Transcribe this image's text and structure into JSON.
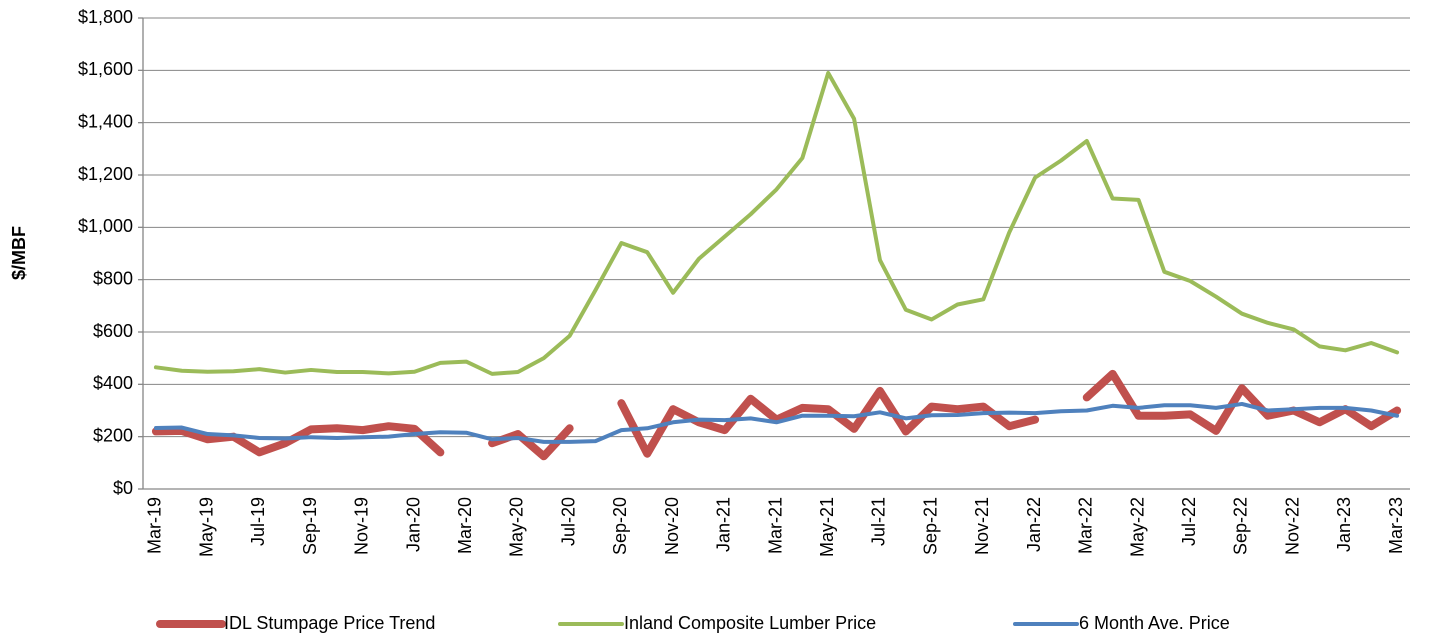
{
  "chart_data": {
    "type": "line",
    "y_label": "$/MBF",
    "categories": [
      "Mar-19",
      null,
      "May-19",
      null,
      "Jul-19",
      null,
      "Sep-19",
      null,
      "Nov-19",
      null,
      "Jan-20",
      null,
      "Mar-20",
      null,
      "May-20",
      null,
      "Jul-20",
      null,
      "Sep-20",
      null,
      "Nov-20",
      null,
      "Jan-21",
      null,
      "Mar-21",
      null,
      "May-21",
      null,
      "Jul-21",
      null,
      "Sep-21",
      null,
      "Nov-21",
      null,
      "Jan-22",
      null,
      "Mar-22",
      null,
      "May-22",
      null,
      "Jul-22",
      null,
      "Sep-22",
      null,
      "Nov-22",
      null,
      "Jan-23",
      null,
      "Mar-23"
    ],
    "series": [
      {
        "name": "IDL Stumpage Price Trend",
        "color": "#c0504d",
        "values": [
          220,
          222,
          190,
          200,
          140,
          175,
          228,
          232,
          225,
          240,
          230,
          140,
          null,
          175,
          210,
          125,
          232,
          null,
          328,
          135,
          305,
          255,
          225,
          345,
          265,
          310,
          305,
          230,
          375,
          220,
          315,
          305,
          315,
          240,
          265,
          null,
          350,
          440,
          280,
          280,
          285,
          222,
          385,
          280,
          300,
          255,
          305,
          240,
          300
        ]
      },
      {
        "name": "Inland Composite Lumber Price",
        "color": "#9bbb59",
        "values": [
          465,
          452,
          448,
          450,
          458,
          445,
          455,
          447,
          447,
          442,
          448,
          482,
          487,
          440,
          447,
          500,
          585,
          760,
          940,
          905,
          750,
          880,
          965,
          1050,
          1145,
          1265,
          1590,
          1415,
          875,
          685,
          648,
          705,
          725,
          980,
          1190,
          1255,
          1330,
          1110,
          1105,
          830,
          795,
          735,
          670,
          635,
          610,
          545,
          530,
          558,
          522
        ]
      },
      {
        "name": "6 Month Ave. Price",
        "color": "#4f81bd",
        "values": [
          233,
          235,
          210,
          205,
          195,
          193,
          198,
          195,
          198,
          200,
          210,
          217,
          215,
          190,
          195,
          180,
          180,
          183,
          225,
          232,
          255,
          265,
          263,
          270,
          255,
          280,
          280,
          278,
          293,
          270,
          282,
          283,
          290,
          292,
          290,
          297,
          300,
          318,
          310,
          320,
          320,
          310,
          325,
          300,
          305,
          310,
          310,
          300,
          280
        ]
      }
    ],
    "ylim": [
      0,
      1800
    ],
    "yticks": [
      {
        "value": 0,
        "label": "$0"
      },
      {
        "value": 200,
        "label": "$200"
      },
      {
        "value": 400,
        "label": "$400"
      },
      {
        "value": 600,
        "label": "$600"
      },
      {
        "value": 800,
        "label": "$800"
      },
      {
        "value": 1000,
        "label": "$1,000"
      },
      {
        "value": 1200,
        "label": "$1,200"
      },
      {
        "value": 1400,
        "label": "$1,400"
      },
      {
        "value": 1600,
        "label": "$1,600"
      },
      {
        "value": 1800,
        "label": "$1,800"
      }
    ],
    "grid": true,
    "legend": "bottom"
  }
}
